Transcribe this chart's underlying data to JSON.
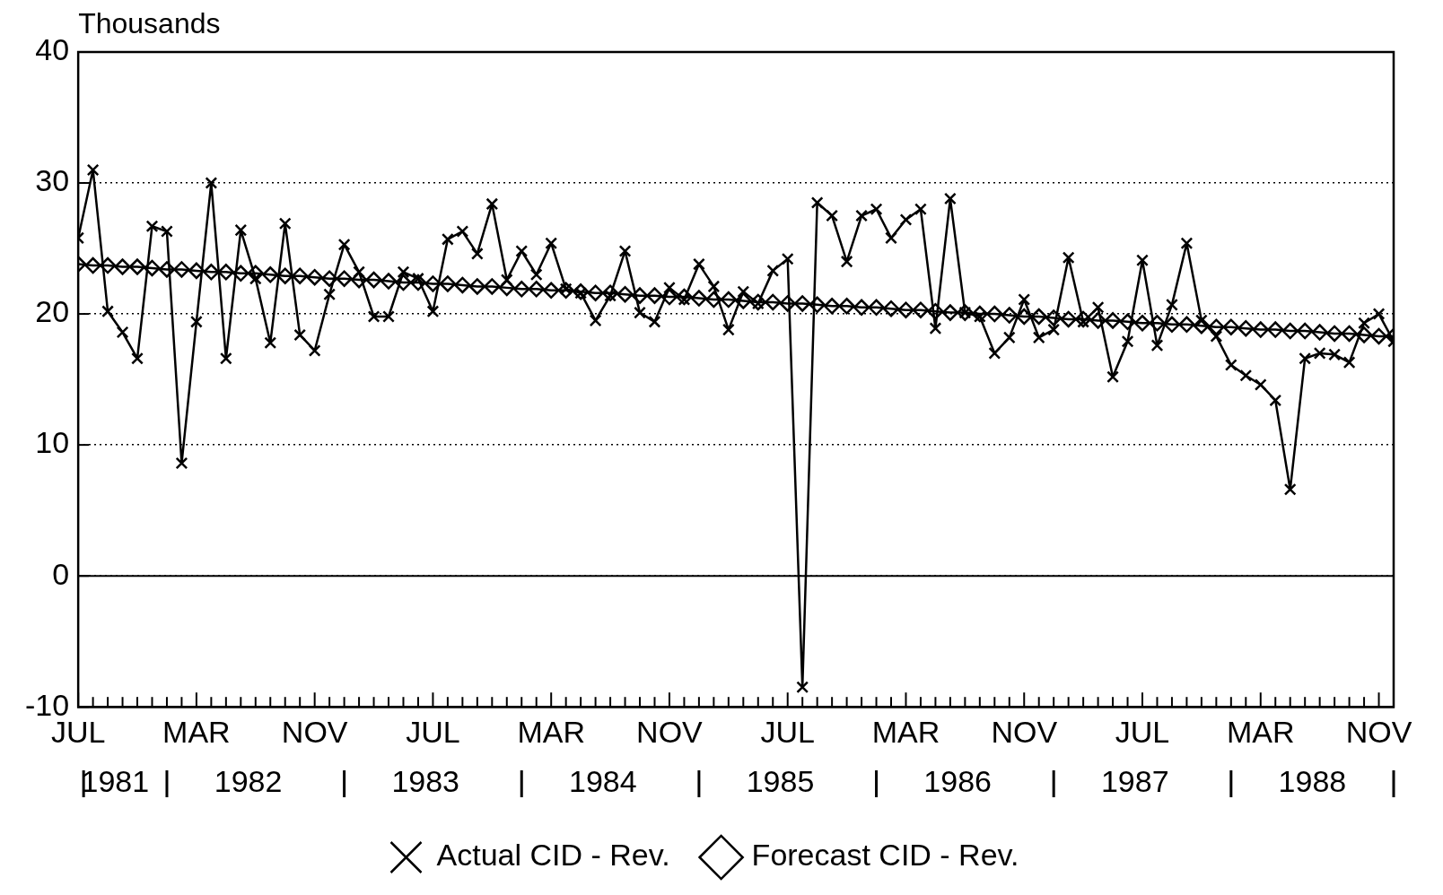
{
  "chart_data": {
    "type": "line",
    "ylabel": "Thousands",
    "x": [
      "1981-07",
      "1981-08",
      "1981-09",
      "1981-10",
      "1981-11",
      "1981-12",
      "1982-01",
      "1982-02",
      "1982-03",
      "1982-04",
      "1982-05",
      "1982-06",
      "1982-07",
      "1982-08",
      "1982-09",
      "1982-10",
      "1982-11",
      "1982-12",
      "1983-01",
      "1983-02",
      "1983-03",
      "1983-04",
      "1983-05",
      "1983-06",
      "1983-07",
      "1983-08",
      "1983-09",
      "1983-10",
      "1983-11",
      "1983-12",
      "1984-01",
      "1984-02",
      "1984-03",
      "1984-04",
      "1984-05",
      "1984-06",
      "1984-07",
      "1984-08",
      "1984-09",
      "1984-10",
      "1984-11",
      "1984-12",
      "1985-01",
      "1985-02",
      "1985-03",
      "1985-04",
      "1985-05",
      "1985-06",
      "1985-07",
      "1985-08",
      "1985-09",
      "1985-10",
      "1985-11",
      "1985-12",
      "1986-01",
      "1986-02",
      "1986-03",
      "1986-04",
      "1986-05",
      "1986-06",
      "1986-07",
      "1986-08",
      "1986-09",
      "1986-10",
      "1986-11",
      "1986-12",
      "1987-01",
      "1987-02",
      "1987-03",
      "1987-04",
      "1987-05",
      "1987-06",
      "1987-07",
      "1987-08",
      "1987-09",
      "1987-10",
      "1987-11",
      "1987-12",
      "1988-01",
      "1988-02",
      "1988-03",
      "1988-04",
      "1988-05",
      "1988-06",
      "1988-07",
      "1988-08",
      "1988-09",
      "1988-10",
      "1988-11",
      "1988-12"
    ],
    "series": [
      {
        "name": "Actual CID - Rev.",
        "color": "#000000",
        "marker": "cross",
        "values": [
          25.8,
          31.0,
          20.2,
          18.6,
          16.6,
          26.7,
          26.3,
          8.6,
          19.4,
          30.0,
          16.6,
          26.4,
          22.7,
          17.8,
          26.9,
          18.4,
          17.2,
          21.5,
          25.3,
          23.2,
          19.8,
          19.8,
          23.2,
          22.7,
          20.2,
          25.7,
          26.3,
          24.6,
          28.4,
          22.6,
          24.8,
          23.0,
          25.4,
          21.9,
          21.6,
          19.5,
          21.4,
          24.8,
          20.1,
          19.4,
          22.0,
          21.1,
          23.8,
          22.1,
          18.8,
          21.7,
          20.8,
          23.3,
          24.2,
          -8.5,
          28.5,
          27.5,
          24.0,
          27.5,
          28.0,
          25.8,
          27.2,
          28.0,
          18.9,
          28.8,
          20.1,
          19.8,
          17.0,
          18.2,
          21.1,
          18.2,
          18.8,
          24.3,
          19.4,
          20.5,
          15.2,
          17.9,
          24.1,
          17.6,
          20.7,
          25.4,
          19.5,
          18.3,
          16.1,
          15.3,
          14.6,
          13.4,
          6.6,
          16.6,
          17.0,
          16.9,
          16.3,
          19.3,
          20.0,
          17.9
        ]
      },
      {
        "name": "Forecast CID - Rev.",
        "color": "#000000",
        "marker": "diamond",
        "values": [
          23.8,
          23.7,
          23.7,
          23.6,
          23.6,
          23.5,
          23.4,
          23.4,
          23.3,
          23.2,
          23.2,
          23.1,
          23.1,
          23.0,
          22.9,
          22.9,
          22.8,
          22.7,
          22.7,
          22.6,
          22.6,
          22.5,
          22.4,
          22.4,
          22.3,
          22.3,
          22.2,
          22.1,
          22.1,
          22.0,
          21.9,
          21.9,
          21.8,
          21.8,
          21.7,
          21.6,
          21.6,
          21.5,
          21.4,
          21.4,
          21.3,
          21.3,
          21.2,
          21.1,
          21.1,
          21.0,
          20.9,
          20.9,
          20.8,
          20.8,
          20.7,
          20.6,
          20.6,
          20.5,
          20.5,
          20.4,
          20.3,
          20.3,
          20.2,
          20.1,
          20.1,
          20.0,
          20.0,
          19.9,
          19.8,
          19.8,
          19.7,
          19.6,
          19.6,
          19.5,
          19.5,
          19.4,
          19.3,
          19.3,
          19.2,
          19.2,
          19.1,
          19.0,
          19.0,
          18.9,
          18.8,
          18.8,
          18.7,
          18.7,
          18.6,
          18.5,
          18.5,
          18.4,
          18.3,
          18.3
        ]
      }
    ],
    "xlim": [
      "1981-07",
      "1988-12"
    ],
    "xticks": [
      {
        "value": "1981-07",
        "label": "JUL"
      },
      {
        "value": "1981-08",
        "label": null
      },
      {
        "value": "1981-09",
        "label": null
      },
      {
        "value": "1981-10",
        "label": null
      },
      {
        "value": "1981-11",
        "label": null
      },
      {
        "value": "1981-12",
        "label": null
      },
      {
        "value": "1982-01",
        "label": null
      },
      {
        "value": "1982-02",
        "label": null
      },
      {
        "value": "1982-03",
        "label": "MAR"
      },
      {
        "value": "1982-04",
        "label": null
      },
      {
        "value": "1982-05",
        "label": null
      },
      {
        "value": "1982-06",
        "label": null
      },
      {
        "value": "1982-07",
        "label": null
      },
      {
        "value": "1982-08",
        "label": null
      },
      {
        "value": "1982-09",
        "label": null
      },
      {
        "value": "1982-10",
        "label": null
      },
      {
        "value": "1982-11",
        "label": "NOV"
      },
      {
        "value": "1982-12",
        "label": null
      },
      {
        "value": "1983-01",
        "label": null
      },
      {
        "value": "1983-02",
        "label": null
      },
      {
        "value": "1983-03",
        "label": null
      },
      {
        "value": "1983-04",
        "label": null
      },
      {
        "value": "1983-05",
        "label": null
      },
      {
        "value": "1983-06",
        "label": null
      },
      {
        "value": "1983-07",
        "label": "JUL"
      },
      {
        "value": "1983-08",
        "label": null
      },
      {
        "value": "1983-09",
        "label": null
      },
      {
        "value": "1983-10",
        "label": null
      },
      {
        "value": "1983-11",
        "label": null
      },
      {
        "value": "1983-12",
        "label": null
      },
      {
        "value": "1984-01",
        "label": null
      },
      {
        "value": "1984-02",
        "label": null
      },
      {
        "value": "1984-03",
        "label": "MAR"
      },
      {
        "value": "1984-04",
        "label": null
      },
      {
        "value": "1984-05",
        "label": null
      },
      {
        "value": "1984-06",
        "label": null
      },
      {
        "value": "1984-07",
        "label": null
      },
      {
        "value": "1984-08",
        "label": null
      },
      {
        "value": "1984-09",
        "label": null
      },
      {
        "value": "1984-10",
        "label": null
      },
      {
        "value": "1984-11",
        "label": "NOV"
      },
      {
        "value": "1984-12",
        "label": null
      },
      {
        "value": "1985-01",
        "label": null
      },
      {
        "value": "1985-02",
        "label": null
      },
      {
        "value": "1985-03",
        "label": null
      },
      {
        "value": "1985-04",
        "label": null
      },
      {
        "value": "1985-05",
        "label": null
      },
      {
        "value": "1985-06",
        "label": null
      },
      {
        "value": "1985-07",
        "label": "JUL"
      },
      {
        "value": "1985-08",
        "label": null
      },
      {
        "value": "1985-09",
        "label": null
      },
      {
        "value": "1985-10",
        "label": null
      },
      {
        "value": "1985-11",
        "label": null
      },
      {
        "value": "1985-12",
        "label": null
      },
      {
        "value": "1986-01",
        "label": null
      },
      {
        "value": "1986-02",
        "label": null
      },
      {
        "value": "1986-03",
        "label": "MAR"
      },
      {
        "value": "1986-04",
        "label": null
      },
      {
        "value": "1986-05",
        "label": null
      },
      {
        "value": "1986-06",
        "label": null
      },
      {
        "value": "1986-07",
        "label": null
      },
      {
        "value": "1986-08",
        "label": null
      },
      {
        "value": "1986-09",
        "label": null
      },
      {
        "value": "1986-10",
        "label": null
      },
      {
        "value": "1986-11",
        "label": "NOV"
      },
      {
        "value": "1986-12",
        "label": null
      },
      {
        "value": "1987-01",
        "label": null
      },
      {
        "value": "1987-02",
        "label": null
      },
      {
        "value": "1987-03",
        "label": null
      },
      {
        "value": "1987-04",
        "label": null
      },
      {
        "value": "1987-05",
        "label": null
      },
      {
        "value": "1987-06",
        "label": null
      },
      {
        "value": "1987-07",
        "label": "JUL"
      },
      {
        "value": "1987-08",
        "label": null
      },
      {
        "value": "1987-09",
        "label": null
      },
      {
        "value": "1987-10",
        "label": null
      },
      {
        "value": "1987-11",
        "label": null
      },
      {
        "value": "1987-12",
        "label": null
      },
      {
        "value": "1988-01",
        "label": null
      },
      {
        "value": "1988-02",
        "label": null
      },
      {
        "value": "1988-03",
        "label": "MAR"
      },
      {
        "value": "1988-04",
        "label": null
      },
      {
        "value": "1988-05",
        "label": null
      },
      {
        "value": "1988-06",
        "label": null
      },
      {
        "value": "1988-07",
        "label": null
      },
      {
        "value": "1988-08",
        "label": null
      },
      {
        "value": "1988-09",
        "label": null
      },
      {
        "value": "1988-10",
        "label": null
      },
      {
        "value": "1988-11",
        "label": "NOV"
      },
      {
        "value": "1988-12",
        "label": null
      }
    ],
    "ylim": [
      -10,
      40
    ],
    "yticks": [
      -10,
      0,
      10,
      20,
      30,
      40
    ],
    "grid": "y",
    "legend": "bottom",
    "line_style": "solid",
    "ref_lines": [
      {
        "axis": "y",
        "value": 0,
        "color": "#000000",
        "line_style": "solid"
      }
    ],
    "annotations": [
      "1981",
      "1982",
      "1983",
      "1984",
      "1985",
      "1986",
      "1987",
      "1988"
    ]
  }
}
